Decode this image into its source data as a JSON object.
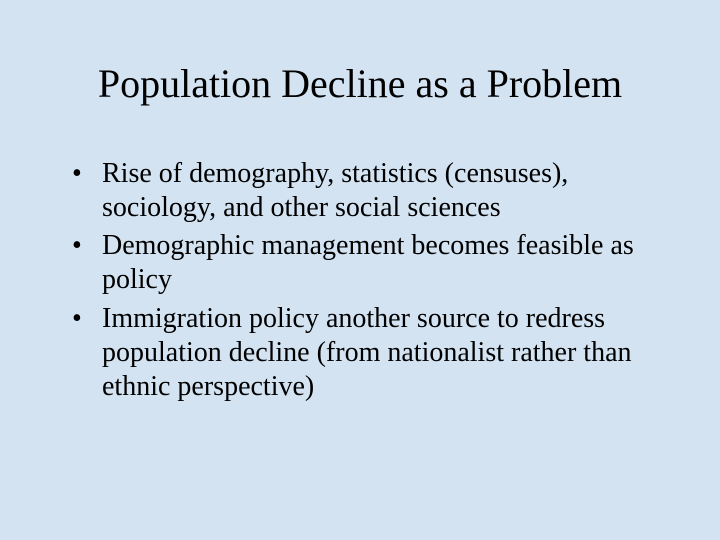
{
  "slide": {
    "background_color": "#d3e3f2",
    "text_color": "#000000",
    "font_family": "Times New Roman",
    "title": {
      "text": "Population Decline as a Problem",
      "fontsize": 40,
      "align": "center"
    },
    "bullets": {
      "fontsize": 28,
      "items": [
        "Rise of demography, statistics (censuses), sociology, and other social sciences",
        "Demographic management becomes feasible as policy",
        "Immigration policy another source to redress population decline (from nationalist rather than ethnic perspective)"
      ]
    }
  }
}
